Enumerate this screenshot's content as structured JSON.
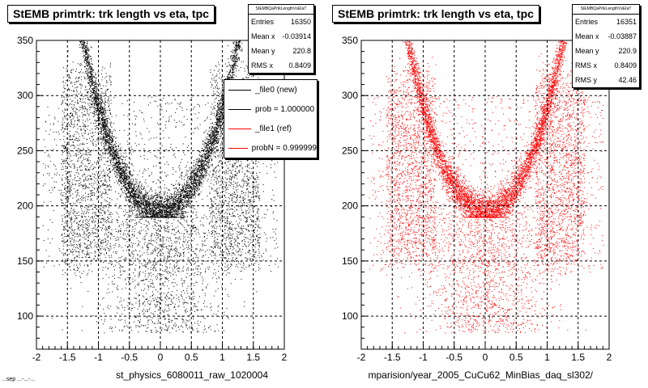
{
  "chart_data": [
    {
      "type": "scatter",
      "title": "StEMB primtrk: trk length vs eta, tpc",
      "xlabel": "st_physics_6080011_raw_1020004",
      "ylabel": "",
      "xlim": [
        -2,
        2
      ],
      "ylim": [
        70,
        350
      ],
      "x_ticks": [
        "-2",
        "-1.5",
        "-1",
        "-0.5",
        "0",
        "0.5",
        "1",
        "1.5",
        "2"
      ],
      "y_ticks": [
        "100",
        "150",
        "200",
        "250",
        "300",
        "350"
      ],
      "grid": true,
      "marker_color": "#000000",
      "stats": {
        "name": "StEMBQaPrtkLengthVsEtaT",
        "rows": [
          {
            "label": "Entries",
            "value": "16350"
          },
          {
            "label": "Mean x",
            "value": "-0.03914"
          },
          {
            "label": "Mean y",
            "value": "220.8"
          },
          {
            "label": "RMS x",
            "value": "0.8409"
          }
        ]
      },
      "legend": [
        {
          "label": "_file0 (new)",
          "color": "#000000"
        },
        {
          "label": "prob = 1.000000",
          "color": "#000000"
        },
        {
          "label": "_file1 (ref)",
          "color": "#ff0000"
        },
        {
          "label": "probN = 0.999999",
          "color": "#ff0000"
        }
      ]
    },
    {
      "type": "scatter",
      "title": "StEMB primtrk: trk length vs eta, tpc",
      "xlabel": "mparision/year_2005_CuCu62_MinBias_daq_sl302/",
      "ylabel": "",
      "xlim": [
        -2,
        2
      ],
      "ylim": [
        70,
        350
      ],
      "x_ticks": [
        "-2",
        "-1.5",
        "-1",
        "-0.5",
        "0",
        "0.5",
        "1",
        "1.5",
        "2"
      ],
      "y_ticks": [
        "100",
        "150",
        "200",
        "250",
        "300",
        "350"
      ],
      "grid": true,
      "marker_color": "#ff0000",
      "stats": {
        "name": "StEMBQaPrtkLengthVsEtaT",
        "rows": [
          {
            "label": "Entries",
            "value": "16351"
          },
          {
            "label": "Mean x",
            "value": "-0.03887"
          },
          {
            "label": "Mean y",
            "value": "220.9"
          },
          {
            "label": "RMS x",
            "value": "0.8409"
          },
          {
            "label": "RMS y",
            "value": "42.46"
          }
        ]
      }
    }
  ],
  "footer": "...sep ...-...-..."
}
